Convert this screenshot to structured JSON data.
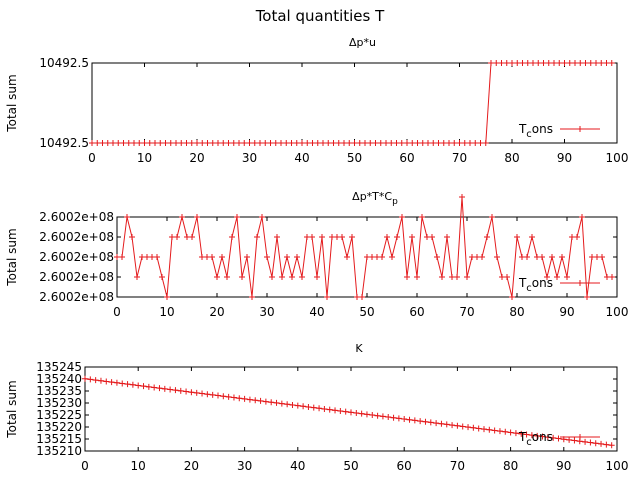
{
  "figure": {
    "title": "Total quantities T",
    "colors": {
      "series": "#e41a1c",
      "axes": "#000000",
      "background": "#ffffff"
    }
  },
  "chart_data": [
    {
      "type": "line",
      "title": "Δp*u",
      "xlabel": "",
      "ylabel": "Total sum",
      "xlim": [
        0,
        100
      ],
      "ylim": [
        0,
        1
      ],
      "xticks": [
        0,
        10,
        20,
        30,
        40,
        50,
        60,
        70,
        80,
        90,
        100
      ],
      "xtick_labels": [
        "0",
        "10",
        "20",
        "30",
        "40",
        "50",
        "60",
        "70",
        "80",
        "90",
        "100"
      ],
      "yticks": [
        0,
        1
      ],
      "ytick_labels": [
        "10492.5",
        "10492.5"
      ],
      "legend": {
        "label": "T",
        "sub": "c",
        "tail": "ons",
        "placement": "bottom-right"
      },
      "grid": false,
      "series": [
        {
          "name": "Tcons",
          "marker": "plus",
          "values": [
            0,
            0,
            0,
            0,
            0,
            0,
            0,
            0,
            0,
            0,
            0,
            0,
            0,
            0,
            0,
            0,
            0,
            0,
            0,
            0,
            0,
            0,
            0,
            0,
            0,
            0,
            0,
            0,
            0,
            0,
            0,
            0,
            0,
            0,
            0,
            0,
            0,
            0,
            0,
            0,
            0,
            0,
            0,
            0,
            0,
            0,
            0,
            0,
            0,
            0,
            0,
            0,
            0,
            0,
            0,
            0,
            0,
            0,
            0,
            0,
            0,
            0,
            0,
            0,
            0,
            0,
            0,
            0,
            0,
            0,
            0,
            0,
            0,
            0,
            0,
            0,
            1,
            1,
            1,
            1,
            1,
            1,
            1,
            1,
            1,
            1,
            1,
            1,
            1,
            1,
            1,
            1,
            1,
            1,
            1,
            1,
            1,
            1,
            1,
            1
          ]
        }
      ]
    },
    {
      "type": "line",
      "title": "Δp*T*C",
      "title_sub": "p",
      "xlabel": "",
      "ylabel": "Total sum",
      "xlim": [
        0,
        100
      ],
      "ylim": [
        0,
        4
      ],
      "xticks": [
        0,
        10,
        20,
        30,
        40,
        50,
        60,
        70,
        80,
        90,
        100
      ],
      "xtick_labels": [
        "0",
        "10",
        "20",
        "30",
        "40",
        "50",
        "60",
        "70",
        "80",
        "90",
        "100"
      ],
      "yticks": [
        0,
        1,
        2,
        3,
        4
      ],
      "ytick_labels": [
        "2.6002e+08",
        "2.6002e+08",
        "2.6002e+08",
        "2.6002e+08",
        "2.6002e+08"
      ],
      "legend": {
        "label": "T",
        "sub": "c",
        "tail": "ons",
        "placement": "bottom-right"
      },
      "grid": false,
      "series": [
        {
          "name": "Tcons",
          "marker": "plus",
          "values": [
            2,
            2,
            4,
            3,
            1,
            2,
            2,
            2,
            2,
            1,
            0,
            3,
            3,
            4,
            3,
            3,
            4,
            2,
            2,
            2,
            1,
            2,
            1,
            3,
            4,
            1,
            2,
            0,
            3,
            4,
            2,
            1,
            3,
            1,
            2,
            1,
            2,
            1,
            3,
            3,
            1,
            3,
            0,
            3,
            3,
            3,
            2,
            3,
            0,
            0,
            2,
            2,
            2,
            2,
            3,
            2,
            3,
            4,
            1,
            3,
            1,
            4,
            3,
            3,
            2,
            1,
            3,
            1,
            1,
            5,
            1,
            2,
            2,
            2,
            3,
            4,
            2,
            1,
            1,
            0,
            3,
            2,
            2,
            3,
            2,
            2,
            1,
            2,
            1,
            2,
            1,
            3,
            3,
            4,
            0,
            2,
            2,
            2,
            1,
            1
          ]
        }
      ]
    },
    {
      "type": "line",
      "title": "K",
      "xlabel": "",
      "ylabel": "Total sum",
      "xlim": [
        0,
        100
      ],
      "ylim": [
        135210,
        135245
      ],
      "xticks": [
        0,
        10,
        20,
        30,
        40,
        50,
        60,
        70,
        80,
        90,
        100
      ],
      "xtick_labels": [
        "0",
        "10",
        "20",
        "30",
        "40",
        "50",
        "60",
        "70",
        "80",
        "90",
        "100"
      ],
      "yticks": [
        135210,
        135215,
        135220,
        135225,
        135230,
        135235,
        135240,
        135245
      ],
      "ytick_labels": [
        "135210",
        "135215",
        "135220",
        "135225",
        "135230",
        "135235",
        "135240",
        "135245"
      ],
      "legend": {
        "label": "T",
        "sub": "c",
        "tail": "ons",
        "placement": "bottom-right"
      },
      "grid": false,
      "series": [
        {
          "name": "Tcons",
          "marker": "plus",
          "x_start": 0,
          "x_step": 1,
          "y_start": 135240.1,
          "y_end": 135212.4,
          "count": 100
        }
      ]
    }
  ]
}
